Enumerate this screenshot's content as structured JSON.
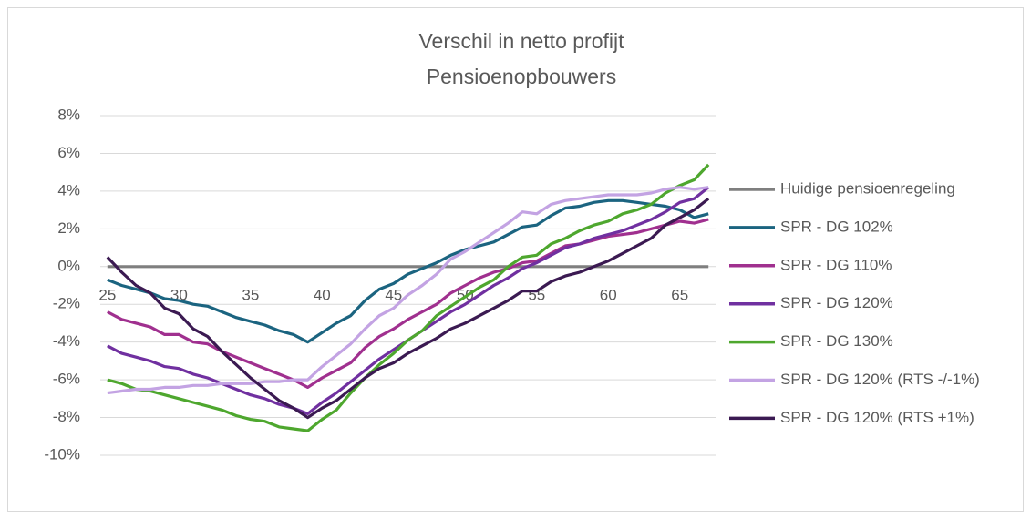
{
  "chart_data": {
    "type": "line",
    "title": [
      "Verschil in netto profijt",
      "Pensioenopbouwers"
    ],
    "x": [
      25,
      26,
      27,
      28,
      29,
      30,
      31,
      32,
      33,
      34,
      35,
      36,
      37,
      38,
      39,
      40,
      41,
      42,
      43,
      44,
      45,
      46,
      47,
      48,
      49,
      50,
      51,
      52,
      53,
      54,
      55,
      56,
      57,
      58,
      59,
      60,
      61,
      62,
      63,
      64,
      65,
      66,
      67
    ],
    "xlim": [
      24.5,
      67.5
    ],
    "xticks": [
      25,
      30,
      35,
      40,
      45,
      50,
      55,
      60,
      65
    ],
    "ylim": [
      -10,
      8
    ],
    "yticks": [
      {
        "value": 8,
        "label": "8%"
      },
      {
        "value": 6,
        "label": "6%"
      },
      {
        "value": 4,
        "label": "4%"
      },
      {
        "value": 2,
        "label": "2%"
      },
      {
        "value": 0,
        "label": "0%"
      },
      {
        "value": -2,
        "label": "-2%"
      },
      {
        "value": -4,
        "label": "-4%"
      },
      {
        "value": -6,
        "label": "-6%"
      },
      {
        "value": -8,
        "label": "-8%"
      },
      {
        "value": -10,
        "label": "-10%"
      }
    ],
    "grid": true,
    "legend": "right",
    "series": [
      {
        "name": "Huidige pensioenregeling",
        "color": "#7f7f7f",
        "values": [
          0,
          0,
          0,
          0,
          0,
          0,
          0,
          0,
          0,
          0,
          0,
          0,
          0,
          0,
          0,
          0,
          0,
          0,
          0,
          0,
          0,
          0,
          0,
          0,
          0,
          0,
          0,
          0,
          0,
          0,
          0,
          0,
          0,
          0,
          0,
          0,
          0,
          0,
          0,
          0,
          0,
          0,
          0
        ]
      },
      {
        "name": "SPR - DG 102%",
        "color": "#1b6480",
        "values": [
          -0.7,
          -1.0,
          -1.2,
          -1.4,
          -1.7,
          -1.8,
          -2.0,
          -2.1,
          -2.4,
          -2.7,
          -2.9,
          -3.1,
          -3.4,
          -3.6,
          -4.0,
          -3.5,
          -3.0,
          -2.6,
          -1.8,
          -1.2,
          -0.9,
          -0.4,
          -0.1,
          0.2,
          0.6,
          0.9,
          1.1,
          1.3,
          1.7,
          2.1,
          2.2,
          2.7,
          3.1,
          3.2,
          3.4,
          3.5,
          3.5,
          3.4,
          3.3,
          3.2,
          3.0,
          2.6,
          2.8
        ]
      },
      {
        "name": "SPR - DG 110%",
        "color": "#a0308f",
        "values": [
          -2.4,
          -2.8,
          -3.0,
          -3.2,
          -3.6,
          -3.6,
          -4.0,
          -4.1,
          -4.5,
          -4.8,
          -5.1,
          -5.4,
          -5.7,
          -6.0,
          -6.4,
          -5.9,
          -5.5,
          -5.1,
          -4.3,
          -3.7,
          -3.3,
          -2.8,
          -2.4,
          -2.0,
          -1.4,
          -1.0,
          -0.6,
          -0.3,
          -0.1,
          0.2,
          0.3,
          0.7,
          1.1,
          1.2,
          1.4,
          1.6,
          1.7,
          1.8,
          2.0,
          2.2,
          2.4,
          2.3,
          2.5
        ]
      },
      {
        "name": "SPR - DG 120%",
        "color": "#7030a0",
        "values": [
          -4.2,
          -4.6,
          -4.8,
          -5.0,
          -5.3,
          -5.4,
          -5.7,
          -5.9,
          -6.2,
          -6.5,
          -6.8,
          -7.0,
          -7.3,
          -7.5,
          -7.8,
          -7.2,
          -6.7,
          -6.1,
          -5.5,
          -4.9,
          -4.4,
          -3.9,
          -3.4,
          -2.9,
          -2.4,
          -2.0,
          -1.5,
          -1.0,
          -0.6,
          -0.1,
          0.2,
          0.6,
          1.0,
          1.2,
          1.5,
          1.7,
          1.9,
          2.2,
          2.5,
          2.9,
          3.4,
          3.6,
          4.2
        ]
      },
      {
        "name": "SPR - DG 130%",
        "color": "#4ea72e",
        "values": [
          -6.0,
          -6.2,
          -6.5,
          -6.6,
          -6.8,
          -7.0,
          -7.2,
          -7.4,
          -7.6,
          -7.9,
          -8.1,
          -8.2,
          -8.5,
          -8.6,
          -8.7,
          -8.1,
          -7.6,
          -6.7,
          -5.9,
          -5.2,
          -4.6,
          -3.9,
          -3.4,
          -2.6,
          -2.1,
          -1.6,
          -1.1,
          -0.7,
          0.0,
          0.5,
          0.6,
          1.2,
          1.5,
          1.9,
          2.2,
          2.4,
          2.8,
          3.0,
          3.3,
          3.9,
          4.3,
          4.6,
          5.4
        ]
      },
      {
        "name": "SPR - DG 120% (RTS -/-1%)",
        "color": "#c3a3e3",
        "values": [
          -6.7,
          -6.6,
          -6.5,
          -6.5,
          -6.4,
          -6.4,
          -6.3,
          -6.3,
          -6.2,
          -6.2,
          -6.2,
          -6.1,
          -6.1,
          -6.0,
          -6.0,
          -5.3,
          -4.7,
          -4.1,
          -3.3,
          -2.6,
          -2.2,
          -1.5,
          -1.0,
          -0.4,
          0.4,
          0.8,
          1.3,
          1.8,
          2.3,
          2.9,
          2.8,
          3.3,
          3.5,
          3.6,
          3.7,
          3.8,
          3.8,
          3.8,
          3.9,
          4.1,
          4.2,
          4.1,
          4.2
        ]
      },
      {
        "name": "SPR - DG 120% (RTS +1%)",
        "color": "#3b1a52",
        "values": [
          0.5,
          -0.3,
          -1.0,
          -1.4,
          -2.2,
          -2.5,
          -3.3,
          -3.7,
          -4.5,
          -5.2,
          -5.9,
          -6.5,
          -7.1,
          -7.5,
          -8.0,
          -7.5,
          -7.1,
          -6.5,
          -5.9,
          -5.4,
          -5.1,
          -4.6,
          -4.2,
          -3.8,
          -3.3,
          -3.0,
          -2.6,
          -2.2,
          -1.8,
          -1.3,
          -1.3,
          -0.8,
          -0.5,
          -0.3,
          0.0,
          0.3,
          0.7,
          1.1,
          1.5,
          2.2,
          2.6,
          3.0,
          3.6
        ]
      }
    ]
  }
}
